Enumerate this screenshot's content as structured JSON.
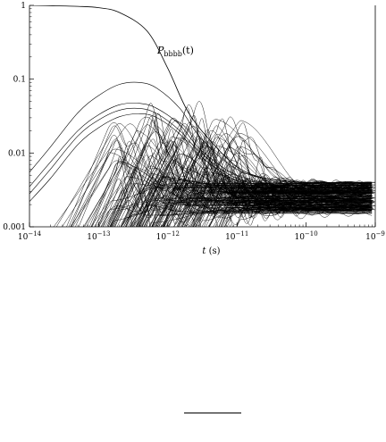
{
  "chart_data": {
    "type": "line",
    "x_scale": "log",
    "y_scale": "log",
    "xlim": [
      1e-14,
      1e-09
    ],
    "ylim": [
      0.001,
      1
    ],
    "xlabel": "t (s)",
    "ylabel": "",
    "x_ticks": [
      {
        "value": 1e-14,
        "label": "10^-14"
      },
      {
        "value": 1e-13,
        "label": "10^-13"
      },
      {
        "value": 1e-12,
        "label": "10^-12"
      },
      {
        "value": 1e-11,
        "label": "10^-11"
      },
      {
        "value": 1e-10,
        "label": "10^-10"
      },
      {
        "value": 1e-09,
        "label": "10^-9"
      }
    ],
    "y_ticks": [
      {
        "value": 1,
        "label": "1"
      },
      {
        "value": 0.1,
        "label": "0.1"
      },
      {
        "value": 0.01,
        "label": "0.01"
      },
      {
        "value": 0.001,
        "label": "0.001"
      }
    ],
    "grid": false,
    "series_label": {
      "base": "P",
      "subscript": "bbbb",
      "suffix": "(t)"
    },
    "series": [
      {
        "role": "initial-state",
        "x": [
          1e-14,
          2e-14,
          5e-14,
          1e-13,
          2e-13,
          5e-13,
          1e-12,
          2e-12,
          5e-12,
          1e-11,
          2e-11,
          5e-11,
          1e-10,
          1e-09
        ],
        "values": [
          1.0,
          0.99,
          0.97,
          0.93,
          0.8,
          0.45,
          0.14,
          0.035,
          0.012,
          0.0065,
          0.0048,
          0.0042,
          0.004,
          0.004
        ]
      },
      {
        "role": "rising",
        "x": [
          1e-14,
          2e-14,
          5e-14,
          1e-13,
          2e-13,
          4e-13,
          7e-13,
          1.5e-12,
          3e-12,
          1e-11,
          5e-11,
          1e-10,
          1e-09
        ],
        "values": [
          0.0055,
          0.012,
          0.035,
          0.06,
          0.085,
          0.09,
          0.075,
          0.04,
          0.016,
          0.006,
          0.0038,
          0.0037,
          0.0037
        ]
      },
      {
        "role": "rising",
        "x": [
          1e-14,
          2e-14,
          5e-14,
          1e-13,
          2e-13,
          4e-13,
          7e-13,
          1.5e-12,
          3e-12,
          1e-11,
          5e-11,
          1e-10,
          1e-09
        ],
        "values": [
          0.0035,
          0.0075,
          0.02,
          0.033,
          0.045,
          0.047,
          0.04,
          0.024,
          0.011,
          0.005,
          0.0035,
          0.0034,
          0.0034
        ]
      },
      {
        "role": "rising",
        "x": [
          1e-14,
          2e-14,
          5e-14,
          1e-13,
          2e-13,
          4e-13,
          7e-13,
          1.5e-12,
          3e-12,
          1e-11,
          5e-11,
          1e-10,
          1e-09
        ],
        "values": [
          0.0028,
          0.006,
          0.017,
          0.028,
          0.038,
          0.04,
          0.034,
          0.02,
          0.01,
          0.0045,
          0.0032,
          0.0031,
          0.0031
        ]
      },
      {
        "role": "rising",
        "x": [
          1e-14,
          2e-14,
          5e-14,
          1e-13,
          2e-13,
          4e-13,
          7e-13,
          1.5e-12,
          3e-12,
          1e-11,
          5e-11,
          1e-10,
          1e-09
        ],
        "values": [
          0.0022,
          0.0045,
          0.013,
          0.022,
          0.031,
          0.034,
          0.03,
          0.018,
          0.009,
          0.0042,
          0.003,
          0.0029,
          0.0029
        ]
      }
    ]
  }
}
